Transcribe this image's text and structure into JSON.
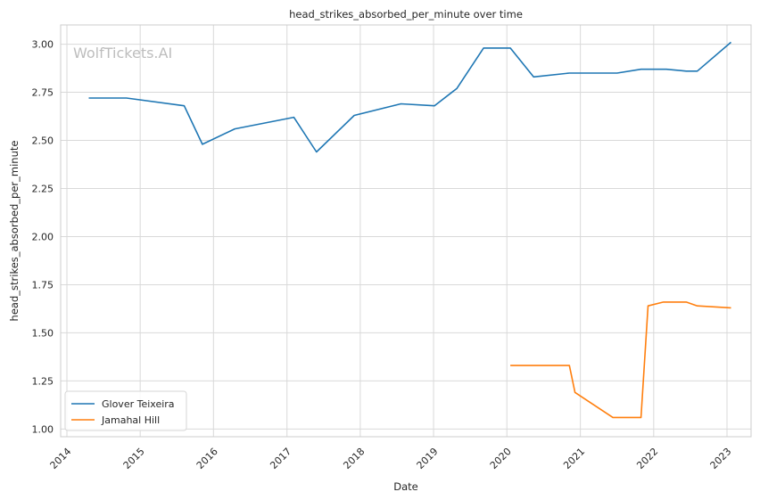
{
  "chart_data": {
    "type": "line",
    "title": "head_strikes_absorbed_per_minute over time",
    "xlabel": "Date",
    "ylabel": "head_strikes_absorbed_per_minute",
    "watermark": "WolfTickets.AI",
    "xlim": [
      "2013-12-01",
      "2023-05-01"
    ],
    "ylim": [
      0.96,
      3.1
    ],
    "x_ticks": [
      "2014",
      "2015",
      "2016",
      "2017",
      "2018",
      "2019",
      "2020",
      "2021",
      "2022",
      "2023"
    ],
    "y_ticks": [
      "1.00",
      "1.25",
      "1.50",
      "1.75",
      "2.00",
      "2.25",
      "2.50",
      "2.75",
      "3.00"
    ],
    "grid": true,
    "legend_position": "lower-left",
    "series": [
      {
        "name": "Glover Teixeira",
        "color": "#1f77b4",
        "points": [
          {
            "x": "2014-04-20",
            "y": 2.72
          },
          {
            "x": "2014-10-25",
            "y": 2.72
          },
          {
            "x": "2015-08-08",
            "y": 2.68
          },
          {
            "x": "2015-11-07",
            "y": 2.48
          },
          {
            "x": "2016-04-16",
            "y": 2.56
          },
          {
            "x": "2017-02-04",
            "y": 2.62
          },
          {
            "x": "2017-05-28",
            "y": 2.44
          },
          {
            "x": "2017-12-02",
            "y": 2.63
          },
          {
            "x": "2018-07-22",
            "y": 2.69
          },
          {
            "x": "2019-01-05",
            "y": 2.68
          },
          {
            "x": "2019-04-27",
            "y": 2.77
          },
          {
            "x": "2019-09-07",
            "y": 2.98
          },
          {
            "x": "2020-01-18",
            "y": 2.98
          },
          {
            "x": "2020-05-13",
            "y": 2.83
          },
          {
            "x": "2020-11-07",
            "y": 2.85
          },
          {
            "x": "2021-07-03",
            "y": 2.85
          },
          {
            "x": "2021-10-30",
            "y": 2.87
          },
          {
            "x": "2022-03-05",
            "y": 2.87
          },
          {
            "x": "2022-06-12",
            "y": 2.86
          },
          {
            "x": "2022-08-06",
            "y": 2.86
          },
          {
            "x": "2023-01-21",
            "y": 3.01
          }
        ]
      },
      {
        "name": "Jamahal Hill",
        "color": "#ff7f0e",
        "points": [
          {
            "x": "2020-01-18",
            "y": 1.33
          },
          {
            "x": "2020-11-07",
            "y": 1.33
          },
          {
            "x": "2020-12-05",
            "y": 1.19
          },
          {
            "x": "2021-06-12",
            "y": 1.06
          },
          {
            "x": "2021-10-30",
            "y": 1.06
          },
          {
            "x": "2021-12-04",
            "y": 1.64
          },
          {
            "x": "2022-02-19",
            "y": 1.66
          },
          {
            "x": "2022-06-12",
            "y": 1.66
          },
          {
            "x": "2022-08-06",
            "y": 1.64
          },
          {
            "x": "2023-01-21",
            "y": 1.63
          }
        ]
      }
    ]
  }
}
